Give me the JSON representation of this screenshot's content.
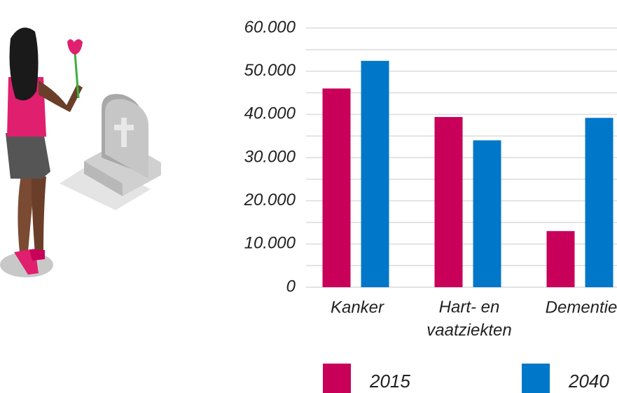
{
  "chart_data": {
    "type": "bar",
    "categories": [
      "Kanker",
      "Hart- en vaatziekten",
      "Dementie"
    ],
    "series": [
      {
        "name": "2015",
        "color": "#c8005a",
        "values": [
          46000,
          39400,
          13000
        ]
      },
      {
        "name": "2040",
        "color": "#0077c8",
        "values": [
          52400,
          34000,
          39200
        ]
      }
    ],
    "ylim": [
      0,
      60000
    ],
    "yticks": [
      0,
      {
        "value": 10000,
        "label": "10.000"
      },
      {
        "value": 20000,
        "label": "20.000"
      },
      {
        "value": 30000,
        "label": "30.000"
      },
      {
        "value": 40000,
        "label": "40.000"
      },
      {
        "value": 50000,
        "label": "50.000"
      },
      {
        "value": 60000,
        "label": "60.000"
      }
    ],
    "minor_yticks": [
      5000,
      15000,
      25000,
      35000,
      45000,
      55000
    ],
    "grid": true
  }
}
